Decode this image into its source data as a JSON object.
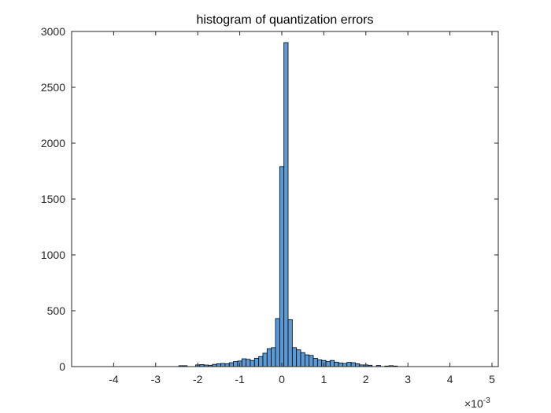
{
  "chart_data": {
    "type": "bar",
    "title": "histogram of quantization errors",
    "xlabel": "",
    "ylabel": "",
    "xlim": [
      -0.005,
      0.00515
    ],
    "ylim": [
      0,
      3000
    ],
    "x_ticks": [
      -4,
      -3,
      -2,
      -1,
      0,
      1,
      2,
      3,
      4,
      5
    ],
    "x_tick_labels": [
      "-4",
      "-3",
      "-2",
      "-1",
      "0",
      "1",
      "2",
      "3",
      "4",
      "5"
    ],
    "y_ticks": [
      0,
      500,
      1000,
      1500,
      2000,
      2500,
      3000
    ],
    "y_tick_labels": [
      "0",
      "500",
      "1000",
      "1500",
      "2000",
      "2500",
      "3000"
    ],
    "x_exponent": {
      "base": "×10",
      "power": "-3"
    },
    "bin_width": 0.0001,
    "bin_centers": [
      -0.0024,
      -0.0023,
      -0.0022,
      -0.0021,
      -0.002,
      -0.0019,
      -0.0018,
      -0.0017,
      -0.0016,
      -0.0015,
      -0.0014,
      -0.0013,
      -0.0012,
      -0.0011,
      -0.001,
      -0.0009,
      -0.0008,
      -0.0007,
      -0.0006,
      -0.0005,
      -0.0004,
      -0.0003,
      -0.0002,
      -0.0001,
      0.0,
      0.0001,
      0.0002,
      0.0003,
      0.0004,
      0.0005,
      0.0006,
      0.0007,
      0.0008,
      0.0009,
      0.001,
      0.0011,
      0.0012,
      0.0013,
      0.0014,
      0.0015,
      0.0016,
      0.0017,
      0.0018,
      0.0019,
      0.002,
      0.0021,
      0.0022,
      0.0023,
      0.0024,
      0.0025,
      0.0026,
      0.0027
    ],
    "counts": [
      8,
      8,
      0,
      0,
      15,
      18,
      14,
      12,
      20,
      25,
      28,
      25,
      35,
      45,
      50,
      70,
      65,
      55,
      75,
      90,
      120,
      160,
      170,
      430,
      1790,
      2900,
      420,
      170,
      150,
      125,
      105,
      100,
      75,
      60,
      55,
      45,
      55,
      40,
      32,
      28,
      38,
      35,
      25,
      15,
      15,
      12,
      0,
      10,
      0,
      5,
      8,
      5
    ],
    "bar_color": "#5b9bd5",
    "edge_color": "#000000",
    "grid": false,
    "box": true
  }
}
